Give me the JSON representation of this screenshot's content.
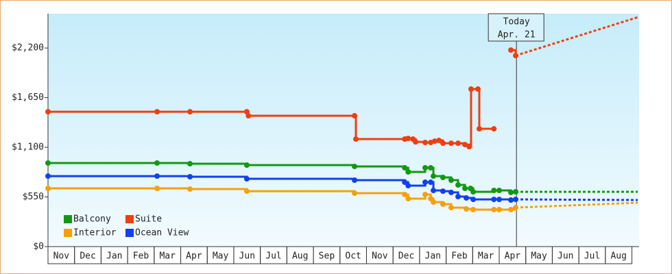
{
  "chart_data": {
    "type": "line",
    "step": true,
    "annotation": {
      "title": "Today",
      "date": "Apr. 21",
      "x": 17.65
    },
    "xlim": [
      0,
      22.27
    ],
    "xticks": [
      {
        "value": 0.5,
        "label": "Nov"
      },
      {
        "value": 1.5,
        "label": "Dec"
      },
      {
        "value": 2.5,
        "label": "Jan"
      },
      {
        "value": 3.5,
        "label": "Feb"
      },
      {
        "value": 4.5,
        "label": "Mar"
      },
      {
        "value": 5.5,
        "label": "Apr"
      },
      {
        "value": 6.5,
        "label": "May"
      },
      {
        "value": 7.5,
        "label": "Jun"
      },
      {
        "value": 8.5,
        "label": "Jul"
      },
      {
        "value": 9.5,
        "label": "Aug"
      },
      {
        "value": 10.5,
        "label": "Sep"
      },
      {
        "value": 11.5,
        "label": "Oct"
      },
      {
        "value": 12.5,
        "label": "Nov"
      },
      {
        "value": 13.5,
        "label": "Dec"
      },
      {
        "value": 14.5,
        "label": "Jan"
      },
      {
        "value": 15.5,
        "label": "Feb"
      },
      {
        "value": 16.5,
        "label": "Mar"
      },
      {
        "value": 17.5,
        "label": "Apr"
      },
      {
        "value": 18.5,
        "label": "May"
      },
      {
        "value": 19.5,
        "label": "Jun"
      },
      {
        "value": 20.5,
        "label": "Jul"
      },
      {
        "value": 21.5,
        "label": "Aug"
      }
    ],
    "ylim": [
      0,
      2580
    ],
    "yticks": [
      {
        "value": 0,
        "label": "$0"
      },
      {
        "value": 550,
        "label": "$550"
      },
      {
        "value": 1100,
        "label": "$1,100"
      },
      {
        "value": 1650,
        "label": "$1,650"
      },
      {
        "value": 2200,
        "label": "$2,200"
      }
    ],
    "grid": false,
    "legend": "lower left",
    "series": [
      {
        "name": "Balcony",
        "color": "#119911",
        "x": [
          0,
          4.11,
          5.35,
          7.49,
          11.55,
          13.44,
          13.57,
          14.21,
          14.42,
          14.52,
          14.88,
          15.19,
          15.45,
          15.71,
          15.92,
          16.02,
          16.8,
          17.0,
          17.44,
          17.62
        ],
        "values": [
          926,
          926,
          918,
          903,
          888,
          873,
          827,
          873,
          873,
          781,
          766,
          736,
          683,
          645,
          645,
          607,
          622,
          622,
          600,
          607
        ],
        "forecast": {
          "x": [
            17.62,
            22.22
          ],
          "values": [
            607,
            607
          ]
        }
      },
      {
        "name": "Suite",
        "color": "#ee3f11",
        "x": [
          0,
          4.11,
          5.35,
          7.49,
          7.55,
          11.55,
          11.6,
          13.44,
          13.57,
          13.75,
          13.85,
          14.21,
          14.42,
          14.57,
          14.73,
          14.88,
          15.19,
          15.45,
          15.71,
          15.87,
          15.94,
          16.2,
          16.25,
          16.8,
          null,
          17.44,
          17.62
        ],
        "values": [
          1494,
          1494,
          1494,
          1494,
          1449,
          1449,
          1191,
          1191,
          1198,
          1191,
          1160,
          1153,
          1153,
          1168,
          1176,
          1145,
          1145,
          1145,
          1130,
          1107,
          1745,
          1745,
          1305,
          1305,
          null,
          2177,
          2116
        ],
        "forecast": {
          "x": [
            17.62,
            22.22
          ],
          "values": [
            2116,
            2541
          ]
        }
      },
      {
        "name": "Interior",
        "color": "#f5a00f",
        "x": [
          0,
          4.11,
          5.35,
          7.49,
          11.55,
          13.44,
          13.57,
          14.21,
          14.42,
          14.52,
          14.88,
          15.19,
          15.76,
          16.02,
          16.8,
          17.0,
          17.44,
          17.62
        ],
        "values": [
          645,
          645,
          637,
          614,
          592,
          577,
          531,
          577,
          531,
          493,
          470,
          432,
          417,
          410,
          410,
          410,
          410,
          432
        ],
        "forecast": {
          "x": [
            17.62,
            22.22
          ],
          "values": [
            432,
            486
          ]
        }
      },
      {
        "name": "Ocean View",
        "color": "#1140ee",
        "x": [
          0,
          4.11,
          5.35,
          7.49,
          11.55,
          13.44,
          13.57,
          14.21,
          14.42,
          14.52,
          14.88,
          15.19,
          15.45,
          15.76,
          16.02,
          16.8,
          17.0,
          17.44,
          17.62
        ],
        "values": [
          781,
          781,
          774,
          751,
          736,
          713,
          675,
          713,
          713,
          622,
          614,
          600,
          554,
          539,
          523,
          523,
          523,
          516,
          523
        ],
        "forecast": {
          "x": [
            17.62,
            22.22
          ],
          "values": [
            523,
            516
          ]
        }
      }
    ]
  }
}
